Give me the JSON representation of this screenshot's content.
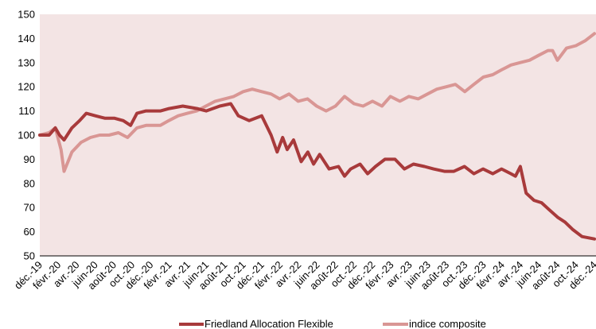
{
  "colors": {
    "plot_background": "#f3e4e4",
    "series_1": "#a83a3b",
    "series_2": "#d99694",
    "axis": "#000000"
  },
  "chart_data": {
    "type": "line",
    "title": "",
    "xlabel": "",
    "ylabel": "",
    "ylim": [
      50,
      150
    ],
    "yticks": [
      50,
      60,
      70,
      80,
      90,
      100,
      110,
      120,
      130,
      140,
      150
    ],
    "xlim": [
      "2019-12",
      "2024-12"
    ],
    "xtick_labels": [
      "déc.-19",
      "févr.-20",
      "avr.-20",
      "juin-20",
      "août-20",
      "oct.-20",
      "déc.-20",
      "févr.-21",
      "avr.-21",
      "juin-21",
      "août-21",
      "oct.-21",
      "déc.-21",
      "févr.-22",
      "avr.-22",
      "juin-22",
      "août-22",
      "oct.-22",
      "déc.-22",
      "févr.-23",
      "avr.-23",
      "juin-23",
      "août-23",
      "oct.-23",
      "déc.-23",
      "févr.-24",
      "avr.-24",
      "juin-24",
      "août-24",
      "oct.-24",
      "déc.-24"
    ],
    "grid": false,
    "legend_position": "bottom",
    "series": [
      {
        "name": "Friedland Allocation Flexible",
        "x": [
          "2019-12-31",
          "2020-01-31",
          "2020-02-20",
          "2020-03-05",
          "2020-03-20",
          "2020-04-15",
          "2020-05-10",
          "2020-06-01",
          "2020-07-01",
          "2020-08-01",
          "2020-09-01",
          "2020-10-01",
          "2020-10-25",
          "2020-11-15",
          "2020-12-15",
          "2021-02-01",
          "2021-03-01",
          "2021-04-15",
          "2021-06-01",
          "2021-07-01",
          "2021-08-15",
          "2021-09-20",
          "2021-10-15",
          "2021-11-20",
          "2021-12-31",
          "2022-01-31",
          "2022-02-20",
          "2022-03-10",
          "2022-03-25",
          "2022-04-15",
          "2022-05-10",
          "2022-06-01",
          "2022-06-20",
          "2022-07-10",
          "2022-08-10",
          "2022-09-10",
          "2022-09-30",
          "2022-10-20",
          "2022-11-20",
          "2022-12-15",
          "2023-01-10",
          "2023-02-10",
          "2023-03-15",
          "2023-04-15",
          "2023-05-15",
          "2023-06-20",
          "2023-07-20",
          "2023-08-25",
          "2023-09-25",
          "2023-10-30",
          "2023-11-30",
          "2023-12-30",
          "2024-01-31",
          "2024-02-29",
          "2024-03-31",
          "2024-04-15",
          "2024-05-01",
          "2024-05-20",
          "2024-06-15",
          "2024-07-10",
          "2024-08-05",
          "2024-09-01",
          "2024-09-25",
          "2024-10-20",
          "2024-11-20",
          "2024-12-31"
        ],
        "values": [
          100,
          100,
          103,
          100,
          98,
          103,
          106,
          109,
          108,
          107,
          107,
          106,
          104,
          109,
          110,
          110,
          111,
          112,
          111,
          110,
          112,
          113,
          108,
          106,
          108,
          100,
          93,
          99,
          94,
          98,
          89,
          93,
          88,
          92,
          86,
          87,
          83,
          86,
          88,
          84,
          87,
          90,
          90,
          86,
          88,
          87,
          86,
          85,
          85,
          87,
          84,
          86,
          84,
          86,
          84,
          83,
          87,
          76,
          73,
          72,
          69,
          66,
          64,
          61,
          58,
          57
        ]
      },
      {
        "name": "indice composite",
        "x": [
          "2019-12-31",
          "2020-01-31",
          "2020-02-20",
          "2020-03-10",
          "2020-03-20",
          "2020-04-15",
          "2020-05-15",
          "2020-06-15",
          "2020-07-15",
          "2020-08-15",
          "2020-09-15",
          "2020-10-15",
          "2020-11-15",
          "2020-12-15",
          "2021-01-31",
          "2021-02-28",
          "2021-03-31",
          "2021-04-30",
          "2021-05-31",
          "2021-06-30",
          "2021-07-31",
          "2021-08-31",
          "2021-09-30",
          "2021-10-31",
          "2021-11-30",
          "2021-12-31",
          "2022-01-31",
          "2022-02-28",
          "2022-03-31",
          "2022-04-30",
          "2022-05-31",
          "2022-06-30",
          "2022-07-31",
          "2022-08-31",
          "2022-09-30",
          "2022-10-31",
          "2022-11-30",
          "2022-12-31",
          "2023-01-31",
          "2023-02-28",
          "2023-03-31",
          "2023-04-30",
          "2023-05-31",
          "2023-06-30",
          "2023-07-31",
          "2023-08-31",
          "2023-09-30",
          "2023-10-31",
          "2023-11-30",
          "2023-12-31",
          "2024-01-31",
          "2024-02-29",
          "2024-03-31",
          "2024-04-30",
          "2024-05-31",
          "2024-06-30",
          "2024-07-31",
          "2024-08-15",
          "2024-08-31",
          "2024-09-30",
          "2024-10-31",
          "2024-11-30",
          "2024-12-31"
        ],
        "values": [
          100,
          101,
          103,
          94,
          85,
          93,
          97,
          99,
          100,
          100,
          101,
          99,
          103,
          104,
          104,
          106,
          108,
          109,
          110,
          112,
          114,
          115,
          116,
          118,
          119,
          118,
          117,
          115,
          117,
          114,
          115,
          112,
          110,
          112,
          116,
          113,
          112,
          114,
          112,
          116,
          114,
          116,
          115,
          117,
          119,
          120,
          121,
          118,
          121,
          124,
          125,
          127,
          129,
          130,
          131,
          133,
          135,
          135,
          131,
          136,
          137,
          139,
          142
        ]
      }
    ]
  }
}
